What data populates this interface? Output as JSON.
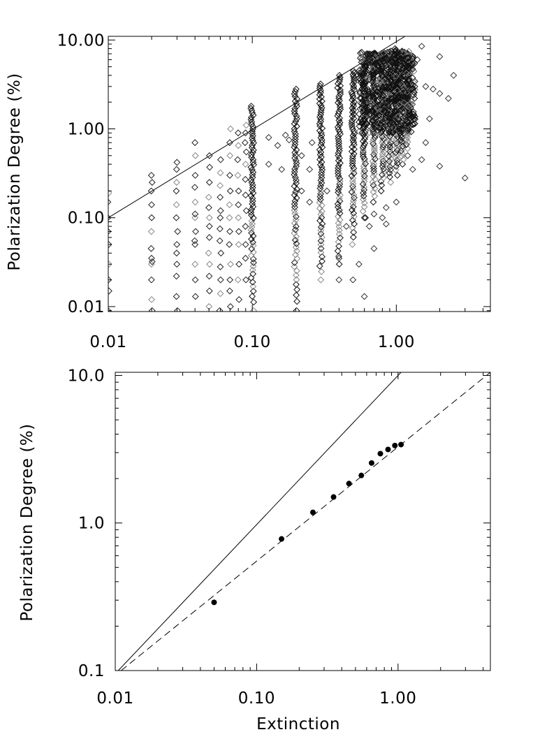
{
  "chart_data": [
    {
      "type": "scatter",
      "xlabel": "",
      "ylabel": "Polarization Degree (%)",
      "xscale": "log",
      "yscale": "log",
      "xlim": [
        0.01,
        4.5
      ],
      "ylim": [
        0.0088,
        11.0
      ],
      "xticks": [
        0.01,
        0.1,
        1.0
      ],
      "xtick_labels": [
        "0.01",
        "0.10",
        "1.00"
      ],
      "yticks": [
        0.01,
        0.1,
        1.0,
        10.0
      ],
      "ytick_labels": [
        "0.01",
        "0.10",
        "1.00",
        "10.00"
      ],
      "marker": "open-diamond",
      "grid": false,
      "lines": [
        {
          "style": "solid",
          "points": [
            [
              0.01,
              0.1
            ],
            [
              1.15,
              11.0
            ]
          ]
        }
      ],
      "columns": [
        {
          "x": 0.01,
          "y": [
            0.009,
            0.015,
            0.02,
            0.03,
            0.05,
            0.07,
            0.1,
            0.15,
            0.19
          ]
        },
        {
          "x": 0.02,
          "y": [
            0.009,
            0.012,
            0.02,
            0.03,
            0.032,
            0.035,
            0.045,
            0.07,
            0.1,
            0.14,
            0.2,
            0.25,
            0.3
          ]
        },
        {
          "x": 0.03,
          "y": [
            0.009,
            0.013,
            0.022,
            0.03,
            0.04,
            0.05,
            0.07,
            0.1,
            0.14,
            0.2,
            0.25,
            0.35,
            0.42
          ]
        },
        {
          "x": 0.04,
          "y": [
            0.013,
            0.02,
            0.03,
            0.05,
            0.055,
            0.07,
            0.1,
            0.11,
            0.15,
            0.22,
            0.3,
            0.5,
            0.7
          ]
        },
        {
          "x": 0.05,
          "y": [
            0.01,
            0.015,
            0.022,
            0.03,
            0.04,
            0.06,
            0.08,
            0.1,
            0.13,
            0.17,
            0.25,
            0.37,
            0.5
          ]
        },
        {
          "x": 0.06,
          "y": [
            0.009,
            0.014,
            0.02,
            0.028,
            0.04,
            0.055,
            0.075,
            0.1,
            0.12,
            0.17,
            0.23,
            0.32,
            0.45
          ]
        },
        {
          "x": 0.07,
          "y": [
            0.01,
            0.015,
            0.02,
            0.03,
            0.05,
            0.07,
            0.1,
            0.14,
            0.2,
            0.3,
            0.5,
            0.7,
            1.0
          ]
        },
        {
          "x": 0.08,
          "y": [
            0.012,
            0.02,
            0.03,
            0.05,
            0.07,
            0.1,
            0.14,
            0.2,
            0.3,
            0.45,
            0.65,
            0.9
          ]
        },
        {
          "x": 0.09,
          "y": [
            0.02,
            0.035,
            0.05,
            0.08,
            0.12,
            0.18,
            0.27,
            0.4,
            0.55,
            0.7,
            0.9,
            1.1
          ]
        },
        {
          "x": 0.1,
          "y_range": [
            0.009,
            1.8
          ],
          "note": "dense column"
        },
        {
          "x": 0.2,
          "y_range": [
            0.009,
            2.8
          ],
          "note": "dense column"
        },
        {
          "x": 0.3,
          "y_range": [
            0.02,
            3.2
          ],
          "note": "dense column"
        },
        {
          "x": 0.4,
          "y_range": [
            0.03,
            4.0
          ],
          "note": "dense column"
        },
        {
          "x": 0.5,
          "y_range": [
            0.05,
            4.5
          ],
          "note": "dense column"
        },
        {
          "x": 0.6,
          "y_range": [
            0.1,
            5.5
          ],
          "note": "dense column"
        },
        {
          "x": 0.7,
          "y_range": [
            0.15,
            6.0
          ],
          "note": "dense column"
        },
        {
          "x": 0.8,
          "y_range": [
            0.2,
            7.0
          ],
          "note": "dense column"
        },
        {
          "x": 0.9,
          "y_range": [
            0.25,
            7.5
          ],
          "note": "dense column"
        },
        {
          "x": 1.0,
          "y_range": [
            0.3,
            8.0
          ],
          "note": "dense column"
        },
        {
          "x": 1.1,
          "y_range": [
            0.4,
            7.5
          ],
          "note": "dense column"
        },
        {
          "x": 1.2,
          "y_range": [
            0.6,
            7.0
          ],
          "note": "dense column"
        }
      ],
      "points": [
        [
          0.3,
          0.045
        ],
        [
          0.4,
          0.02
        ],
        [
          0.4,
          0.035
        ],
        [
          0.45,
          0.08
        ],
        [
          0.5,
          0.02
        ],
        [
          0.55,
          0.03
        ],
        [
          0.6,
          0.013
        ],
        [
          0.6,
          0.1
        ],
        [
          0.65,
          0.08
        ],
        [
          0.7,
          0.045
        ],
        [
          0.7,
          0.11
        ],
        [
          0.8,
          0.1
        ],
        [
          0.85,
          0.085
        ],
        [
          0.85,
          0.13
        ],
        [
          1.0,
          0.15
        ],
        [
          1.2,
          0.5
        ],
        [
          1.3,
          0.35
        ],
        [
          1.5,
          0.45
        ],
        [
          1.6,
          0.7
        ],
        [
          1.7,
          1.3
        ],
        [
          1.8,
          2.8
        ],
        [
          2.0,
          2.5
        ],
        [
          2.0,
          6.5
        ],
        [
          2.0,
          0.38
        ],
        [
          2.3,
          2.2
        ],
        [
          2.5,
          4.0
        ],
        [
          3.0,
          0.28
        ],
        [
          1.5,
          8.5
        ],
        [
          1.4,
          6.0
        ],
        [
          1.6,
          3.0
        ],
        [
          0.13,
          0.4
        ],
        [
          0.13,
          0.8
        ],
        [
          0.15,
          0.65
        ],
        [
          0.16,
          0.35
        ],
        [
          0.17,
          0.85
        ],
        [
          0.18,
          0.75
        ],
        [
          0.22,
          0.2
        ],
        [
          0.22,
          0.5
        ],
        [
          0.25,
          0.35
        ],
        [
          0.25,
          0.15
        ],
        [
          0.26,
          0.7
        ],
        [
          0.33,
          0.2
        ]
      ]
    },
    {
      "type": "line",
      "xlabel": "Extinction",
      "ylabel": "Polarization Degree (%)",
      "xscale": "log",
      "yscale": "log",
      "xlim": [
        0.01,
        4.5
      ],
      "ylim": [
        0.1,
        10.5
      ],
      "xticks": [
        0.01,
        0.1,
        1.0
      ],
      "xtick_labels": [
        "0.01",
        "0.10",
        "1.00"
      ],
      "yticks": [
        0.1,
        1.0,
        10.0
      ],
      "ytick_labels": [
        "0.1",
        "1.0",
        "10.0"
      ],
      "grid": false,
      "series": [
        {
          "style": "solid",
          "points": [
            [
              0.0105,
              0.1
            ],
            [
              1.05,
              10.5
            ]
          ]
        },
        {
          "style": "dashed",
          "points": [
            [
              0.011,
              0.1
            ],
            [
              4.5,
              10.5
            ]
          ]
        },
        {
          "style": "markers",
          "marker": "filled-circle",
          "points": [
            [
              0.05,
              0.29
            ],
            [
              0.15,
              0.78
            ],
            [
              0.25,
              1.18
            ],
            [
              0.35,
              1.5
            ],
            [
              0.45,
              1.85
            ],
            [
              0.55,
              2.1
            ],
            [
              0.65,
              2.55
            ],
            [
              0.75,
              2.95
            ],
            [
              0.85,
              3.15
            ],
            [
              0.95,
              3.35
            ],
            [
              1.05,
              3.4
            ]
          ]
        }
      ]
    }
  ]
}
